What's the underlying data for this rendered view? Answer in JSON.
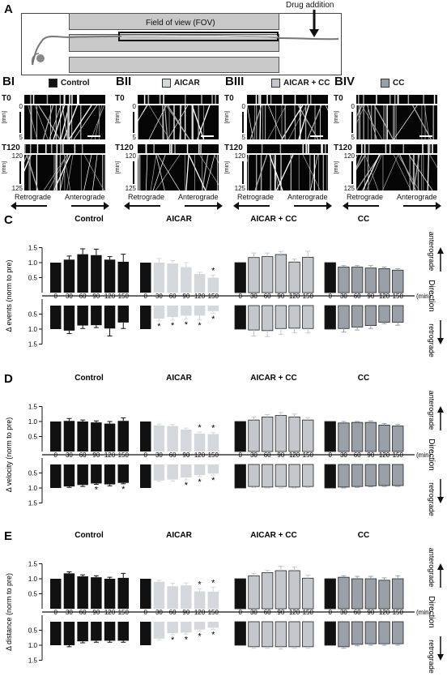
{
  "panelA": {
    "label": "A",
    "fov_label": "Field of view (FOV)",
    "drug_label": "Drug addition"
  },
  "panelB": {
    "groups": [
      {
        "label": "BI",
        "name": "Control",
        "color": "#111111"
      },
      {
        "label": "BII",
        "name": "AICAR",
        "color": "#d4d8dc"
      },
      {
        "label": "BIII",
        "name": "AICAR + CC",
        "color": "#c4c8cd"
      },
      {
        "label": "BIV",
        "name": "CC",
        "color": "#9aa0a8"
      }
    ],
    "t0": "T0",
    "t120": "T120",
    "min_unit": "[min]",
    "ticks_top": [
      "0",
      "5"
    ],
    "ticks_bottom": [
      "120",
      "125"
    ],
    "retro": "Retrograde",
    "antero": "Anterograde"
  },
  "chart_data": [
    {
      "type": "bar",
      "panel": "C",
      "ylabel": "Δ events (norm to pre)",
      "categories": [
        "0",
        "30",
        "60",
        "90",
        "120",
        "150"
      ],
      "xunit": "(min)",
      "yticks_top": [
        "0.5",
        "1.0",
        "1.5"
      ],
      "yticks_bottom": [
        "0.5",
        "1.0",
        "1.5"
      ],
      "anterograde": [
        {
          "name": "Control",
          "values": [
            1.0,
            1.1,
            1.28,
            1.25,
            1.1,
            1.03
          ],
          "err": [
            0,
            0.12,
            0.18,
            0.2,
            0.1,
            0.25
          ],
          "sig": []
        },
        {
          "name": "AICAR",
          "values": [
            1.0,
            1.0,
            0.97,
            0.85,
            0.62,
            0.5
          ],
          "err": [
            0,
            0.14,
            0.1,
            0.15,
            0.06,
            0.08
          ],
          "sig": [
            5
          ]
        },
        {
          "name": "AICAR + CC",
          "values": [
            1.0,
            1.17,
            1.2,
            1.27,
            1.02,
            1.18
          ],
          "err": [
            0,
            0.15,
            0.12,
            0.1,
            0.1,
            0.2
          ],
          "sig": []
        },
        {
          "name": "CC",
          "values": [
            1.0,
            0.85,
            0.85,
            0.82,
            0.8,
            0.75
          ],
          "err": [
            0,
            0.05,
            0.05,
            0.08,
            0.05,
            0.05
          ],
          "sig": []
        }
      ],
      "retrograde": [
        {
          "name": "Control",
          "values": [
            1.0,
            1.05,
            0.88,
            0.87,
            0.98,
            0.78
          ],
          "err": [
            0,
            0.1,
            0.1,
            0.08,
            0.25,
            0.2
          ],
          "sig": []
        },
        {
          "name": "AICAR",
          "values": [
            1.0,
            0.65,
            0.6,
            0.55,
            0.55,
            0.4
          ],
          "err": [
            0,
            0.08,
            0.1,
            0.12,
            0.15,
            0.08
          ],
          "sig": [
            1,
            2,
            3,
            4,
            5
          ]
        },
        {
          "name": "AICAR + CC",
          "values": [
            1.0,
            1.03,
            1.05,
            0.98,
            0.97,
            0.98
          ],
          "err": [
            0,
            0.2,
            0.2,
            0.2,
            0.15,
            0.15
          ],
          "sig": []
        },
        {
          "name": "CC",
          "values": [
            1.0,
            0.98,
            0.93,
            0.88,
            0.77,
            0.77
          ],
          "err": [
            0,
            0.12,
            0.1,
            0.1,
            0.05,
            0.1
          ],
          "sig": []
        }
      ],
      "direction_label": "Direction",
      "antero_label": "anterograde",
      "retro_label": "retrograde"
    },
    {
      "type": "bar",
      "panel": "D",
      "ylabel": "Δ velocity (norm to pre)",
      "categories": [
        "0",
        "30",
        "60",
        "90",
        "120",
        "150"
      ],
      "xunit": "(min)",
      "yticks_top": [
        "0.5",
        "1.0",
        "1.5"
      ],
      "yticks_bottom": [
        "0.5",
        "1.0",
        "1.5"
      ],
      "anterograde": [
        {
          "name": "Control",
          "values": [
            1.0,
            1.02,
            1.0,
            0.97,
            0.93,
            1.02
          ],
          "err": [
            0,
            0.08,
            0.05,
            0.05,
            0.07,
            0.1
          ],
          "sig": []
        },
        {
          "name": "AICAR",
          "values": [
            1.0,
            0.87,
            0.85,
            0.73,
            0.6,
            0.58
          ],
          "err": [
            0,
            0.05,
            0.05,
            0.05,
            0.05,
            0.05
          ],
          "sig": [
            4,
            5
          ]
        },
        {
          "name": "AICAR + CC",
          "values": [
            1.0,
            1.05,
            1.15,
            1.2,
            1.15,
            1.05
          ],
          "err": [
            0,
            0.1,
            0.08,
            0.1,
            0.1,
            0.08
          ],
          "sig": []
        },
        {
          "name": "CC",
          "values": [
            1.0,
            0.95,
            0.97,
            0.97,
            0.88,
            0.85
          ],
          "err": [
            0,
            0.05,
            0.03,
            0.05,
            0.05,
            0.05
          ],
          "sig": []
        }
      ],
      "retrograde": [
        {
          "name": "Control",
          "values": [
            1.0,
            0.95,
            0.9,
            0.85,
            0.88,
            0.83
          ],
          "err": [
            0,
            0.03,
            0.05,
            0.03,
            0.05,
            0.03
          ],
          "sig": [
            3,
            5
          ]
        },
        {
          "name": "AICAR",
          "values": [
            1.0,
            0.75,
            0.72,
            0.65,
            0.57,
            0.52
          ],
          "err": [
            0,
            0.03,
            0.05,
            0.08,
            0.05,
            0.05
          ],
          "sig": [
            3,
            4,
            5
          ]
        },
        {
          "name": "AICAR + CC",
          "values": [
            1.0,
            0.95,
            0.97,
            0.95,
            0.97,
            0.95
          ],
          "err": [
            0,
            0.03,
            0.03,
            0.05,
            0.03,
            0.03
          ],
          "sig": []
        },
        {
          "name": "CC",
          "values": [
            1.0,
            0.97,
            0.95,
            0.93,
            0.92,
            0.92
          ],
          "err": [
            0,
            0.03,
            0.03,
            0.03,
            0.03,
            0.03
          ],
          "sig": []
        }
      ],
      "direction_label": "Direction",
      "antero_label": "anterograde",
      "retro_label": "retrograde"
    },
    {
      "type": "bar",
      "panel": "E",
      "ylabel": "Δ distance (norm to pre)",
      "categories": [
        "0",
        "30",
        "60",
        "90",
        "120",
        "150"
      ],
      "xunit": "(min)",
      "yticks_top": [
        "0.5",
        "1.0",
        "1.5"
      ],
      "yticks_bottom": [
        "0.5",
        "1.0",
        "1.5"
      ],
      "anterograde": [
        {
          "name": "Control",
          "values": [
            1.0,
            1.18,
            1.08,
            1.05,
            1.0,
            1.03
          ],
          "err": [
            0,
            0.05,
            0.05,
            0.05,
            0.05,
            0.15
          ],
          "sig": []
        },
        {
          "name": "AICAR",
          "values": [
            1.0,
            0.9,
            0.75,
            0.78,
            0.58,
            0.57
          ],
          "err": [
            0,
            0.05,
            0.1,
            0.08,
            0.08,
            0.15
          ],
          "sig": [
            4,
            5
          ]
        },
        {
          "name": "AICAR + CC",
          "values": [
            1.0,
            1.1,
            1.2,
            1.27,
            1.27,
            1.02
          ],
          "err": [
            0,
            0.08,
            0.08,
            0.15,
            0.12,
            0.1
          ],
          "sig": []
        },
        {
          "name": "CC",
          "values": [
            1.0,
            1.05,
            1.0,
            1.0,
            0.95,
            1.0
          ],
          "err": [
            0,
            0.05,
            0.08,
            0.08,
            0.08,
            0.1
          ],
          "sig": []
        }
      ],
      "retrograde": [
        {
          "name": "Control",
          "values": [
            1.0,
            1.0,
            0.87,
            0.85,
            0.85,
            0.85
          ],
          "err": [
            0,
            0.05,
            0.05,
            0.05,
            0.05,
            0.05
          ],
          "sig": []
        },
        {
          "name": "AICAR",
          "values": [
            1.0,
            0.78,
            0.6,
            0.58,
            0.48,
            0.42
          ],
          "err": [
            0,
            0.05,
            0.05,
            0.05,
            0.05,
            0.05
          ],
          "sig": [
            2,
            3,
            4,
            5
          ]
        },
        {
          "name": "AICAR + CC",
          "values": [
            1.0,
            1.05,
            1.05,
            1.05,
            1.05,
            1.05
          ],
          "err": [
            0,
            0.05,
            0.05,
            0.08,
            0.05,
            0.05
          ],
          "sig": []
        },
        {
          "name": "CC",
          "values": [
            1.0,
            1.05,
            0.97,
            0.95,
            0.95,
            0.95
          ],
          "err": [
            0,
            0.05,
            0.05,
            0.05,
            0.05,
            0.05
          ],
          "sig": []
        }
      ],
      "direction_label": "Direction",
      "antero_label": "anterograde",
      "retro_label": "retrograde"
    }
  ]
}
